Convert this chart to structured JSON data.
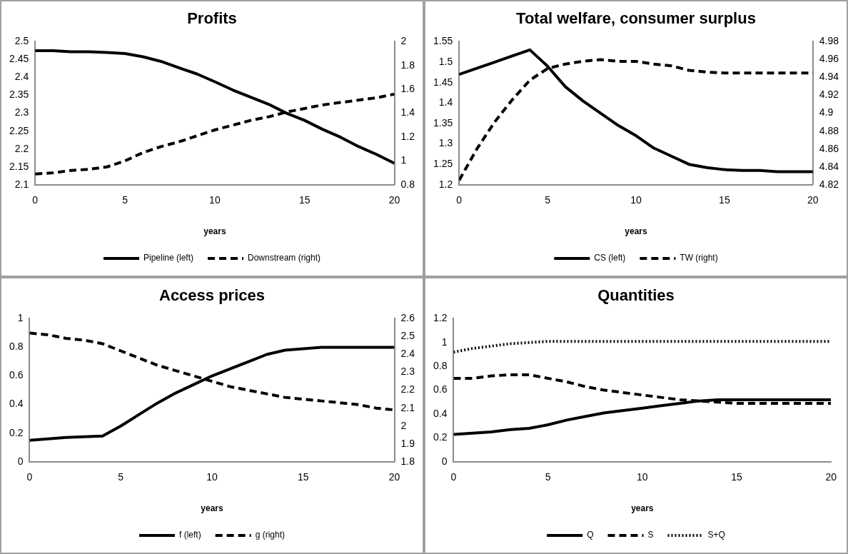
{
  "chart_data": [
    {
      "type": "line",
      "title": "Profits",
      "xlabel": "years",
      "x": [
        0,
        1,
        2,
        3,
        4,
        5,
        6,
        7,
        8,
        9,
        10,
        11,
        12,
        13,
        14,
        15,
        16,
        17,
        18,
        19,
        20
      ],
      "xlim": [
        0,
        20
      ],
      "xticks": [
        0,
        5,
        10,
        15,
        20
      ],
      "ylim": [
        2.1,
        2.5
      ],
      "yticks": [
        {
          "value": 2.1,
          "label": "2.1"
        },
        {
          "value": 2.15,
          "label": "2.15"
        },
        {
          "value": 2.2,
          "label": "2.2"
        },
        {
          "value": 2.25,
          "label": "2.25"
        },
        {
          "value": 2.3,
          "label": "2.3"
        },
        {
          "value": 2.35,
          "label": "2.35"
        },
        {
          "value": 2.4,
          "label": "2.4"
        },
        {
          "value": 2.45,
          "label": "2.45"
        },
        {
          "value": 2.5,
          "label": "2.5"
        }
      ],
      "y2lim": [
        0.8,
        2
      ],
      "y2ticks": [
        {
          "value": 0.8,
          "label": "0.8"
        },
        {
          "value": 1,
          "label": "1"
        },
        {
          "value": 1.2,
          "label": "1.2"
        },
        {
          "value": 1.4,
          "label": "1.4"
        },
        {
          "value": 1.6,
          "label": "1.6"
        },
        {
          "value": 1.8,
          "label": "1.8"
        },
        {
          "value": 2,
          "label": "2"
        }
      ],
      "grid": false,
      "legend": "bottom",
      "marker": "none",
      "series": [
        {
          "name": "Pipeline (left)",
          "color": "#000000",
          "line_style": "solid",
          "values": [
            2.475,
            2.475,
            2.472,
            2.472,
            2.47,
            2.467,
            2.458,
            2.445,
            2.427,
            2.41,
            2.388,
            2.365,
            2.345,
            2.325,
            2.3,
            2.28,
            2.255,
            2.233,
            2.207,
            2.185,
            2.16
          ]
        },
        {
          "name": "Downstream (right)",
          "color": "#000000",
          "line_style": "dashed",
          "axis": "y2",
          "values": [
            0.89,
            0.9,
            0.92,
            0.93,
            0.95,
            1.0,
            1.07,
            1.12,
            1.16,
            1.21,
            1.26,
            1.3,
            1.34,
            1.37,
            1.41,
            1.44,
            1.47,
            1.49,
            1.51,
            1.53,
            1.56
          ]
        }
      ]
    },
    {
      "type": "line",
      "title": "Total welfare, consumer surplus",
      "xlabel": "years",
      "x": [
        0,
        1,
        2,
        3,
        4,
        5,
        6,
        7,
        8,
        9,
        10,
        11,
        12,
        13,
        14,
        15,
        16,
        17,
        18,
        19,
        20
      ],
      "xlim": [
        0,
        20
      ],
      "xticks": [
        0,
        5,
        10,
        15,
        20
      ],
      "ylim": [
        1.2,
        1.55
      ],
      "yticks": [
        {
          "value": 1.2,
          "label": "1.2"
        },
        {
          "value": 1.25,
          "label": "1.25"
        },
        {
          "value": 1.3,
          "label": "1.3"
        },
        {
          "value": 1.35,
          "label": "1.35"
        },
        {
          "value": 1.4,
          "label": "1.4"
        },
        {
          "value": 1.45,
          "label": "1.45"
        },
        {
          "value": 1.5,
          "label": "1.5"
        },
        {
          "value": 1.55,
          "label": "1.55"
        }
      ],
      "y2lim": [
        4.82,
        4.98
      ],
      "y2ticks": [
        {
          "value": 4.82,
          "label": "4.82"
        },
        {
          "value": 4.84,
          "label": "4.84"
        },
        {
          "value": 4.86,
          "label": "4.86"
        },
        {
          "value": 4.88,
          "label": "4.88"
        },
        {
          "value": 4.9,
          "label": "4.9"
        },
        {
          "value": 4.92,
          "label": "4.92"
        },
        {
          "value": 4.94,
          "label": "4.94"
        },
        {
          "value": 4.96,
          "label": "4.96"
        },
        {
          "value": 4.98,
          "label": "4.98"
        }
      ],
      "grid": false,
      "legend": "bottom",
      "marker": "none",
      "series": [
        {
          "name": "CS (left)",
          "color": "#000000",
          "line_style": "solid",
          "values": [
            1.47,
            1.485,
            1.5,
            1.515,
            1.53,
            1.49,
            1.44,
            1.405,
            1.375,
            1.345,
            1.32,
            1.29,
            1.27,
            1.25,
            1.242,
            1.237,
            1.235,
            1.235,
            1.232,
            1.232,
            1.232
          ]
        },
        {
          "name": "TW (right)",
          "color": "#000000",
          "line_style": "dashed",
          "axis": "y2",
          "values": [
            4.825,
            4.86,
            4.89,
            4.915,
            4.937,
            4.95,
            4.955,
            4.958,
            4.96,
            4.958,
            4.958,
            4.955,
            4.953,
            4.948,
            4.946,
            4.945,
            4.945,
            4.945,
            4.945,
            4.945,
            4.945
          ]
        }
      ]
    },
    {
      "type": "line",
      "title": "Access prices",
      "xlabel": "years",
      "x": [
        0,
        1,
        2,
        3,
        4,
        5,
        6,
        7,
        8,
        9,
        10,
        11,
        12,
        13,
        14,
        15,
        16,
        17,
        18,
        19,
        20
      ],
      "xlim": [
        0,
        20
      ],
      "xticks": [
        0,
        5,
        10,
        15,
        20
      ],
      "ylim": [
        0,
        1
      ],
      "yticks": [
        {
          "value": 0,
          "label": "0"
        },
        {
          "value": 0.2,
          "label": "0.2"
        },
        {
          "value": 0.4,
          "label": "0.4"
        },
        {
          "value": 0.6,
          "label": "0.6"
        },
        {
          "value": 0.8,
          "label": "0.8"
        },
        {
          "value": 1,
          "label": "1"
        }
      ],
      "y2lim": [
        1.8,
        2.6
      ],
      "y2ticks": [
        {
          "value": 1.8,
          "label": "1.8"
        },
        {
          "value": 1.9,
          "label": "1.9"
        },
        {
          "value": 2,
          "label": "2"
        },
        {
          "value": 2.1,
          "label": "2.1"
        },
        {
          "value": 2.2,
          "label": "2.2"
        },
        {
          "value": 2.3,
          "label": "2.3"
        },
        {
          "value": 2.4,
          "label": "2.4"
        },
        {
          "value": 2.5,
          "label": "2.5"
        },
        {
          "value": 2.6,
          "label": "2.6"
        }
      ],
      "grid": false,
      "legend": "bottom",
      "marker": "none",
      "series": [
        {
          "name": "f (left)",
          "color": "#000000",
          "line_style": "solid",
          "values": [
            0.15,
            0.16,
            0.17,
            0.175,
            0.18,
            0.25,
            0.33,
            0.41,
            0.48,
            0.54,
            0.6,
            0.65,
            0.7,
            0.75,
            0.78,
            0.79,
            0.8,
            0.8,
            0.8,
            0.8,
            0.8
          ]
        },
        {
          "name": "g (right)",
          "color": "#000000",
          "line_style": "dashed",
          "axis": "y2",
          "values": [
            2.52,
            2.51,
            2.49,
            2.48,
            2.46,
            2.42,
            2.38,
            2.34,
            2.31,
            2.28,
            2.25,
            2.22,
            2.2,
            2.18,
            2.16,
            2.15,
            2.14,
            2.13,
            2.12,
            2.1,
            2.09
          ]
        }
      ]
    },
    {
      "type": "line",
      "title": "Quantities",
      "xlabel": "years",
      "x": [
        0,
        1,
        2,
        3,
        4,
        5,
        6,
        7,
        8,
        9,
        10,
        11,
        12,
        13,
        14,
        15,
        16,
        17,
        18,
        19,
        20
      ],
      "xlim": [
        0,
        20
      ],
      "xticks": [
        0,
        5,
        10,
        15,
        20
      ],
      "ylim": [
        0,
        1.2
      ],
      "yticks": [
        0,
        {
          "value": 0.2,
          "label": "0.2"
        },
        {
          "value": 0.4,
          "label": "0.4"
        },
        {
          "value": 0.6,
          "label": "0.6"
        },
        {
          "value": 0.8,
          "label": "0.8"
        },
        1,
        {
          "value": 1.2,
          "label": "1.2"
        }
      ],
      "grid": false,
      "legend": "bottom",
      "marker": "none",
      "series": [
        {
          "name": "Q",
          "color": "#000000",
          "line_style": "solid",
          "values": [
            0.23,
            0.24,
            0.25,
            0.27,
            0.28,
            0.31,
            0.35,
            0.38,
            0.41,
            0.43,
            0.45,
            0.47,
            0.49,
            0.51,
            0.52,
            0.52,
            0.52,
            0.52,
            0.52,
            0.52,
            0.52
          ]
        },
        {
          "name": "S",
          "color": "#000000",
          "line_style": "dashed",
          "values": [
            0.7,
            0.7,
            0.72,
            0.73,
            0.73,
            0.7,
            0.67,
            0.63,
            0.6,
            0.58,
            0.56,
            0.54,
            0.52,
            0.51,
            0.5,
            0.49,
            0.49,
            0.49,
            0.49,
            0.49,
            0.49
          ]
        },
        {
          "name": "S+Q",
          "color": "#000000",
          "line_style": "dotted",
          "values": [
            0.92,
            0.95,
            0.97,
            0.99,
            1.0,
            1.01,
            1.01,
            1.01,
            1.01,
            1.01,
            1.01,
            1.01,
            1.01,
            1.01,
            1.01,
            1.01,
            1.01,
            1.01,
            1.01,
            1.01,
            1.01
          ]
        }
      ]
    }
  ]
}
